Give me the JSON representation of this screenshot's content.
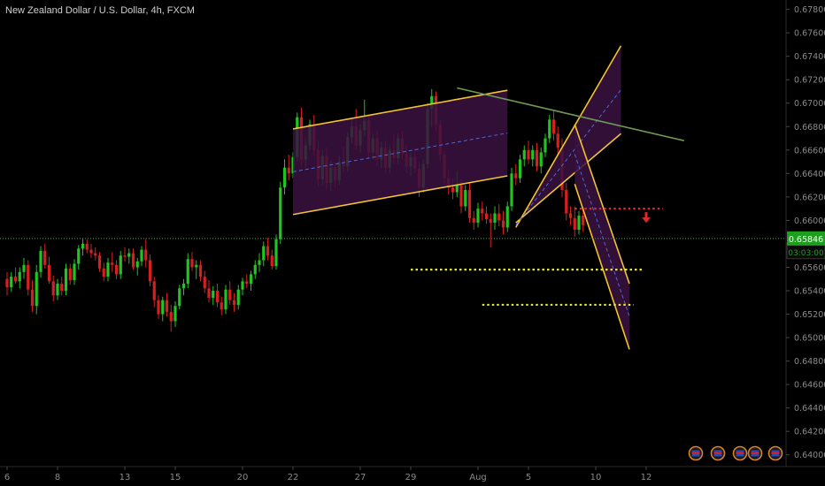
{
  "title": "New Zealand Dollar / U.S. Dollar, 4h, FXCM",
  "colors": {
    "background": "#000000",
    "up": "#22c322",
    "down": "#d62020",
    "channel_fill": "#3a1240",
    "channel_edge": "#f2c230",
    "midline": "#4a6ad8",
    "trendline": "#6f9a55",
    "price_line": "#2dbd2d",
    "support": "#e8e832",
    "resistance": "#e02828",
    "axis_text": "#8a8a8a",
    "price_badge": "#1e9e1e"
  },
  "chart_data": {
    "type": "candlestick",
    "symbol": "New Zealand Dollar / U.S. Dollar",
    "timeframe": "4h",
    "source": "FXCM",
    "ylim": [
      0.639,
      0.6788
    ],
    "y_ticks": [
      "0.67800",
      "0.67600",
      "0.67400",
      "0.67200",
      "0.67000",
      "0.66800",
      "0.66600",
      "0.66400",
      "0.66200",
      "0.66000",
      "0.65800",
      "0.65600",
      "0.65400",
      "0.65200",
      "0.65000",
      "0.64800",
      "0.64600",
      "0.64400",
      "0.64200",
      "0.64000"
    ],
    "x_ticks": [
      {
        "label": "6",
        "i": 0
      },
      {
        "label": "8",
        "i": 12
      },
      {
        "label": "13",
        "i": 28
      },
      {
        "label": "15",
        "i": 40
      },
      {
        "label": "20",
        "i": 56
      },
      {
        "label": "22",
        "i": 68
      },
      {
        "label": "27",
        "i": 84
      },
      {
        "label": "29",
        "i": 96
      },
      {
        "label": "Aug",
        "i": 112
      },
      {
        "label": "5",
        "i": 124
      },
      {
        "label": "10",
        "i": 140
      },
      {
        "label": "12",
        "i": 152
      }
    ],
    "current_price": "0.65846",
    "countdown": "03:03:00",
    "candles": [
      [
        0.655,
        0.6556,
        0.6536,
        0.6543
      ],
      [
        0.6543,
        0.6556,
        0.6539,
        0.6552
      ],
      [
        0.6552,
        0.656,
        0.6546,
        0.6548
      ],
      [
        0.6548,
        0.656,
        0.6542,
        0.6556
      ],
      [
        0.6556,
        0.6568,
        0.655,
        0.6562
      ],
      [
        0.6562,
        0.6566,
        0.6536,
        0.6541
      ],
      [
        0.6541,
        0.6549,
        0.6522,
        0.6527
      ],
      [
        0.6527,
        0.6562,
        0.652,
        0.6556
      ],
      [
        0.6556,
        0.6578,
        0.6551,
        0.6574
      ],
      [
        0.6574,
        0.658,
        0.6559,
        0.6562
      ],
      [
        0.6562,
        0.6569,
        0.6546,
        0.6548
      ],
      [
        0.6548,
        0.6553,
        0.6531,
        0.6536
      ],
      [
        0.6536,
        0.655,
        0.6532,
        0.6546
      ],
      [
        0.6546,
        0.6552,
        0.6536,
        0.654
      ],
      [
        0.654,
        0.6563,
        0.6536,
        0.6559
      ],
      [
        0.6559,
        0.6563,
        0.6545,
        0.6549
      ],
      [
        0.6549,
        0.6567,
        0.6545,
        0.6563
      ],
      [
        0.6563,
        0.6579,
        0.6558,
        0.6576
      ],
      [
        0.6576,
        0.6584,
        0.657,
        0.658
      ],
      [
        0.658,
        0.6584,
        0.6572,
        0.6575
      ],
      [
        0.6575,
        0.658,
        0.6568,
        0.6572
      ],
      [
        0.6572,
        0.6577,
        0.6566,
        0.657
      ],
      [
        0.657,
        0.6573,
        0.6556,
        0.6559
      ],
      [
        0.6559,
        0.6564,
        0.6548,
        0.6552
      ],
      [
        0.6552,
        0.6568,
        0.6548,
        0.6564
      ],
      [
        0.6564,
        0.6573,
        0.6556,
        0.6562
      ],
      [
        0.6562,
        0.6566,
        0.655,
        0.6554
      ],
      [
        0.6554,
        0.6574,
        0.655,
        0.657
      ],
      [
        0.657,
        0.6577,
        0.6565,
        0.6569
      ],
      [
        0.6569,
        0.6576,
        0.6563,
        0.6572
      ],
      [
        0.6572,
        0.6576,
        0.6558,
        0.656
      ],
      [
        0.656,
        0.6568,
        0.6553,
        0.6565
      ],
      [
        0.6565,
        0.6578,
        0.6561,
        0.6575
      ],
      [
        0.6575,
        0.6584,
        0.656,
        0.6566
      ],
      [
        0.6566,
        0.6571,
        0.6544,
        0.6548
      ],
      [
        0.6548,
        0.6552,
        0.6526,
        0.6532
      ],
      [
        0.6532,
        0.6536,
        0.6516,
        0.652
      ],
      [
        0.652,
        0.6535,
        0.6514,
        0.6532
      ],
      [
        0.6532,
        0.6538,
        0.6518,
        0.6522
      ],
      [
        0.6522,
        0.6528,
        0.6505,
        0.6514
      ],
      [
        0.6514,
        0.6531,
        0.6509,
        0.6527
      ],
      [
        0.6527,
        0.6545,
        0.6524,
        0.6542
      ],
      [
        0.6542,
        0.655,
        0.6536,
        0.6546
      ],
      [
        0.6546,
        0.6572,
        0.6542,
        0.6567
      ],
      [
        0.6567,
        0.6573,
        0.6557,
        0.656
      ],
      [
        0.656,
        0.6566,
        0.655,
        0.6562
      ],
      [
        0.6562,
        0.6566,
        0.6548,
        0.6552
      ],
      [
        0.6552,
        0.6557,
        0.6538,
        0.6542
      ],
      [
        0.6542,
        0.6549,
        0.653,
        0.6534
      ],
      [
        0.6534,
        0.6544,
        0.6528,
        0.654
      ],
      [
        0.654,
        0.6546,
        0.6526,
        0.653
      ],
      [
        0.653,
        0.6535,
        0.6519,
        0.6524
      ],
      [
        0.6524,
        0.6545,
        0.652,
        0.6541
      ],
      [
        0.6541,
        0.6548,
        0.6528,
        0.6532
      ],
      [
        0.6532,
        0.6538,
        0.6522,
        0.6528
      ],
      [
        0.6528,
        0.6545,
        0.6524,
        0.6541
      ],
      [
        0.6541,
        0.6551,
        0.6536,
        0.6548
      ],
      [
        0.6548,
        0.6554,
        0.6542,
        0.6546
      ],
      [
        0.6546,
        0.6557,
        0.654,
        0.6554
      ],
      [
        0.6554,
        0.6566,
        0.655,
        0.6562
      ],
      [
        0.6562,
        0.6572,
        0.6556,
        0.6566
      ],
      [
        0.6566,
        0.6582,
        0.6561,
        0.6578
      ],
      [
        0.6578,
        0.6585,
        0.6566,
        0.657
      ],
      [
        0.657,
        0.6575,
        0.6558,
        0.6561
      ],
      [
        0.6561,
        0.6588,
        0.6558,
        0.6584
      ],
      [
        0.6584,
        0.6633,
        0.658,
        0.6628
      ],
      [
        0.6628,
        0.6652,
        0.6622,
        0.6645
      ],
      [
        0.6645,
        0.6656,
        0.6634,
        0.664
      ],
      [
        0.664,
        0.6658,
        0.6636,
        0.6654
      ],
      [
        0.6654,
        0.6692,
        0.665,
        0.6688
      ],
      [
        0.6688,
        0.6696,
        0.6646,
        0.6652
      ],
      [
        0.6652,
        0.667,
        0.6646,
        0.6664
      ],
      [
        0.6664,
        0.6686,
        0.666,
        0.6682
      ],
      [
        0.6682,
        0.669,
        0.6655,
        0.666
      ],
      [
        0.666,
        0.6668,
        0.6629,
        0.6635
      ],
      [
        0.6635,
        0.666,
        0.663,
        0.6655
      ],
      [
        0.6655,
        0.6662,
        0.6626,
        0.6632
      ],
      [
        0.6632,
        0.6651,
        0.6625,
        0.6645
      ],
      [
        0.6645,
        0.665,
        0.6628,
        0.6634
      ],
      [
        0.6634,
        0.6655,
        0.663,
        0.665
      ],
      [
        0.665,
        0.6663,
        0.6641,
        0.6646
      ],
      [
        0.6646,
        0.6675,
        0.6642,
        0.6671
      ],
      [
        0.6671,
        0.6686,
        0.6666,
        0.668
      ],
      [
        0.668,
        0.6695,
        0.666,
        0.6664
      ],
      [
        0.6664,
        0.6682,
        0.6658,
        0.6677
      ],
      [
        0.6677,
        0.6703,
        0.6672,
        0.6685
      ],
      [
        0.6685,
        0.669,
        0.6653,
        0.6658
      ],
      [
        0.6658,
        0.6674,
        0.6652,
        0.667
      ],
      [
        0.667,
        0.6676,
        0.6646,
        0.6652
      ],
      [
        0.6652,
        0.6667,
        0.6645,
        0.6662
      ],
      [
        0.6662,
        0.6668,
        0.664,
        0.6645
      ],
      [
        0.6645,
        0.6664,
        0.664,
        0.666
      ],
      [
        0.666,
        0.6673,
        0.6648,
        0.6653
      ],
      [
        0.6653,
        0.6674,
        0.6648,
        0.667
      ],
      [
        0.667,
        0.6676,
        0.6652,
        0.6657
      ],
      [
        0.6657,
        0.6664,
        0.664,
        0.6646
      ],
      [
        0.6646,
        0.6658,
        0.6638,
        0.6654
      ],
      [
        0.6654,
        0.6662,
        0.664,
        0.6644
      ],
      [
        0.6644,
        0.665,
        0.662,
        0.6628
      ],
      [
        0.6628,
        0.6652,
        0.6624,
        0.6648
      ],
      [
        0.6648,
        0.67,
        0.6644,
        0.6695
      ],
      [
        0.6695,
        0.6712,
        0.668,
        0.6706
      ],
      [
        0.6706,
        0.671,
        0.6676,
        0.6682
      ],
      [
        0.6682,
        0.6686,
        0.665,
        0.6656
      ],
      [
        0.6656,
        0.666,
        0.663,
        0.6636
      ],
      [
        0.6636,
        0.6643,
        0.6622,
        0.6628
      ],
      [
        0.6628,
        0.6636,
        0.6618,
        0.6624
      ],
      [
        0.6624,
        0.6642,
        0.662,
        0.663
      ],
      [
        0.663,
        0.6635,
        0.6606,
        0.6612
      ],
      [
        0.6612,
        0.663,
        0.6608,
        0.6626
      ],
      [
        0.6626,
        0.6632,
        0.6598,
        0.6602
      ],
      [
        0.6602,
        0.6608,
        0.6592,
        0.6598
      ],
      [
        0.6598,
        0.6615,
        0.6594,
        0.661
      ],
      [
        0.661,
        0.6616,
        0.66,
        0.6606
      ],
      [
        0.6606,
        0.6612,
        0.6597,
        0.6601
      ],
      [
        0.6601,
        0.6606,
        0.6577,
        0.6598
      ],
      [
        0.6598,
        0.6612,
        0.6592,
        0.6606
      ],
      [
        0.6606,
        0.6614,
        0.6595,
        0.66
      ],
      [
        0.66,
        0.6608,
        0.6588,
        0.6594
      ],
      [
        0.6594,
        0.6616,
        0.659,
        0.6612
      ],
      [
        0.6612,
        0.6645,
        0.6608,
        0.664
      ],
      [
        0.664,
        0.6648,
        0.663,
        0.6636
      ],
      [
        0.6636,
        0.6656,
        0.6632,
        0.6652
      ],
      [
        0.6652,
        0.6664,
        0.6646,
        0.666
      ],
      [
        0.666,
        0.6668,
        0.6648,
        0.6652
      ],
      [
        0.6652,
        0.6664,
        0.6646,
        0.666
      ],
      [
        0.666,
        0.6666,
        0.6642,
        0.6646
      ],
      [
        0.6646,
        0.6662,
        0.664,
        0.6658
      ],
      [
        0.6658,
        0.6674,
        0.6654,
        0.667
      ],
      [
        0.667,
        0.669,
        0.6666,
        0.6686
      ],
      [
        0.6686,
        0.6694,
        0.6668,
        0.6674
      ],
      [
        0.6674,
        0.668,
        0.6655,
        0.6662
      ],
      [
        0.6662,
        0.667,
        0.662,
        0.6626
      ],
      [
        0.6626,
        0.6632,
        0.66,
        0.6606
      ],
      [
        0.6606,
        0.6612,
        0.6596,
        0.6602
      ],
      [
        0.6602,
        0.6612,
        0.6586,
        0.6592
      ],
      [
        0.6592,
        0.6608,
        0.6588,
        0.6604
      ],
      [
        0.6604,
        0.661,
        0.659,
        0.6596
      ]
    ],
    "drawings": {
      "rising_channel": [
        [
          68,
          0.6678
        ],
        [
          119,
          0.6711
        ],
        [
          119,
          0.6638
        ],
        [
          68,
          0.6605
        ]
      ],
      "rising_channel_mid": [
        [
          68,
          0.66415
        ],
        [
          119,
          0.66745
        ]
      ],
      "second_channel": [
        [
          121,
          0.6594
        ],
        [
          146,
          0.6749
        ],
        [
          146,
          0.6674
        ],
        [
          121,
          0.6598
        ]
      ],
      "second_channel_mid": [
        [
          121,
          0.6596
        ],
        [
          146,
          0.67115
        ]
      ],
      "falling_channel": [
        [
          135,
          0.6682
        ],
        [
          148,
          0.6546
        ],
        [
          148,
          0.649
        ],
        [
          135,
          0.6631
        ]
      ],
      "falling_channel_mid": [
        [
          135,
          0.66565
        ],
        [
          148,
          0.6518
        ]
      ],
      "trendline": [
        [
          107,
          0.6713
        ],
        [
          161,
          0.6668
        ]
      ],
      "resistance_dotted": [
        [
          135,
          0.661
        ],
        [
          156,
          0.661
        ]
      ],
      "support_dotted_1": [
        [
          96,
          0.6558
        ],
        [
          151,
          0.6558
        ]
      ],
      "support_dotted_2": [
        [
          113,
          0.6528
        ],
        [
          149,
          0.6528
        ]
      ],
      "arrow": [
        152,
        0.6601
      ]
    }
  }
}
